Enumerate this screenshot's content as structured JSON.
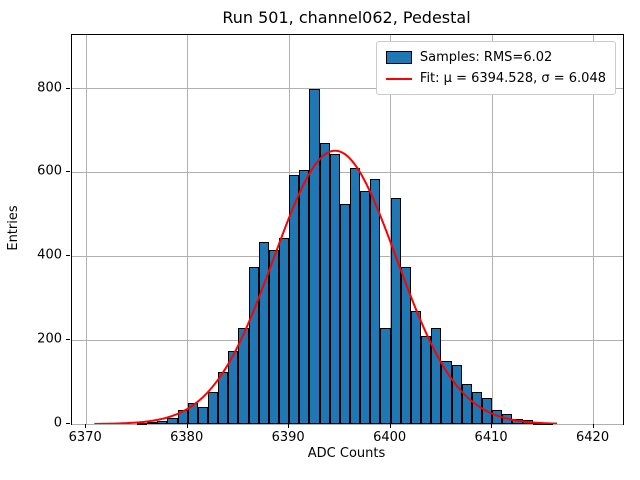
{
  "title": "Run 501, channel062, Pedestal",
  "axes": {
    "xlabel": "ADC Counts",
    "ylabel": "Entries"
  },
  "legend": {
    "samples_label": "Samples: RMS=6.02",
    "fit_label": "Fit: μ = 6394.528, σ = 6.048"
  },
  "chart_data": {
    "type": "bar",
    "subtype": "histogram-with-gaussian-fit",
    "title": "Run 501, channel062, Pedestal",
    "xlabel": "ADC Counts",
    "ylabel": "Entries",
    "xlim": [
      6368.6,
      6422.9
    ],
    "ylim": [
      0,
      928
    ],
    "xticks": [
      6370,
      6380,
      6390,
      6400,
      6410,
      6420
    ],
    "yticks": [
      0,
      200,
      400,
      600,
      800
    ],
    "grid": true,
    "grid_color": "#b0b0b0",
    "bar_color": "#1f77b4",
    "bar_edge_color": "#000000",
    "bin_width": 1,
    "bin_left_edges": [
      6375,
      6376,
      6377,
      6378,
      6379,
      6380,
      6381,
      6382,
      6383,
      6384,
      6385,
      6386,
      6387,
      6388,
      6389,
      6390,
      6391,
      6392,
      6393,
      6394,
      6395,
      6396,
      6397,
      6398,
      6399,
      6400,
      6401,
      6402,
      6403,
      6404,
      6405,
      6406,
      6407,
      6408,
      6409,
      6410,
      6411,
      6412,
      6413,
      6414,
      6415
    ],
    "values": [
      3,
      4,
      8,
      14,
      33,
      49,
      40,
      76,
      124,
      174,
      230,
      375,
      435,
      415,
      443,
      595,
      605,
      800,
      670,
      645,
      525,
      610,
      557,
      585,
      228,
      538,
      375,
      270,
      211,
      228,
      150,
      141,
      95,
      77,
      63,
      33,
      23,
      12,
      10,
      3,
      2
    ],
    "fit": {
      "mu": 6394.528,
      "sigma": 6.048,
      "amplitude": 652,
      "color": "#ff0000",
      "x_start": 6370.8,
      "x_end": 6416.5,
      "line_width": 2
    },
    "legend": [
      {
        "type": "patch",
        "color": "#1f77b4",
        "label": "Samples: RMS=6.02"
      },
      {
        "type": "line",
        "color": "#ff0000",
        "label": "Fit: μ = 6394.528, σ = 6.048"
      }
    ],
    "legend_position": "upper-right",
    "rms": 6.02
  }
}
